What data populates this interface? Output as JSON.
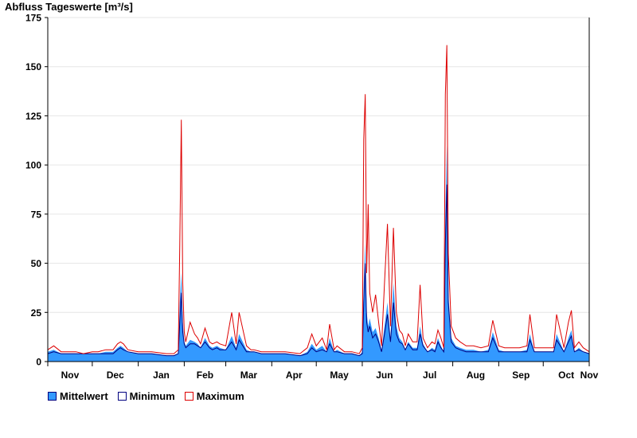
{
  "chart_data": {
    "type": "area",
    "title": "Abfluss Tageswerte [m³/s]",
    "xlabel": "",
    "ylabel": "",
    "ylim": [
      0,
      175
    ],
    "yticks": [
      "0",
      "25",
      "50",
      "75",
      "100",
      "125",
      "150",
      "175"
    ],
    "x_month_labels": [
      "Nov",
      "Dec",
      "Jan",
      "Feb",
      "Mar",
      "Apr",
      "May",
      "Jun",
      "Jul",
      "Aug",
      "Sep",
      "Oct",
      "Nov"
    ],
    "x": [
      "2020-11-01",
      "2020-11-05",
      "2020-11-10",
      "2020-11-15",
      "2020-11-20",
      "2020-11-25",
      "2020-12-01",
      "2020-12-05",
      "2020-12-10",
      "2020-12-15",
      "2020-12-18",
      "2020-12-20",
      "2020-12-22",
      "2020-12-25",
      "2021-01-01",
      "2021-01-10",
      "2021-01-20",
      "2021-01-25",
      "2021-01-28",
      "2021-01-29",
      "2021-01-30",
      "2021-01-31",
      "2021-02-01",
      "2021-02-02",
      "2021-02-05",
      "2021-02-08",
      "2021-02-10",
      "2021-02-12",
      "2021-02-15",
      "2021-02-18",
      "2021-02-20",
      "2021-02-23",
      "2021-02-25",
      "2021-03-01",
      "2021-03-05",
      "2021-03-08",
      "2021-03-10",
      "2021-03-15",
      "2021-03-18",
      "2021-03-20",
      "2021-03-25",
      "2021-04-01",
      "2021-04-10",
      "2021-04-20",
      "2021-04-25",
      "2021-04-28",
      "2021-05-01",
      "2021-05-05",
      "2021-05-08",
      "2021-05-10",
      "2021-05-13",
      "2021-05-15",
      "2021-05-20",
      "2021-05-25",
      "2021-05-30",
      "2021-06-01",
      "2021-06-02",
      "2021-06-03",
      "2021-06-04",
      "2021-06-05",
      "2021-06-06",
      "2021-06-08",
      "2021-06-10",
      "2021-06-12",
      "2021-06-14",
      "2021-06-16",
      "2021-06-18",
      "2021-06-20",
      "2021-06-22",
      "2021-06-24",
      "2021-06-26",
      "2021-06-28",
      "2021-06-30",
      "2021-07-02",
      "2021-07-05",
      "2021-07-08",
      "2021-07-10",
      "2021-07-12",
      "2021-07-15",
      "2021-07-18",
      "2021-07-20",
      "2021-07-22",
      "2021-07-24",
      "2021-07-26",
      "2021-07-27",
      "2021-07-28",
      "2021-07-29",
      "2021-07-31",
      "2021-08-03",
      "2021-08-06",
      "2021-08-10",
      "2021-08-15",
      "2021-08-20",
      "2021-08-25",
      "2021-08-28",
      "2021-09-01",
      "2021-09-05",
      "2021-09-10",
      "2021-09-15",
      "2021-09-20",
      "2021-09-22",
      "2021-09-25",
      "2021-10-01",
      "2021-10-05",
      "2021-10-08",
      "2021-10-10",
      "2021-10-15",
      "2021-10-18",
      "2021-10-20",
      "2021-10-22",
      "2021-10-25",
      "2021-10-28",
      "2021-11-01"
    ],
    "series": [
      {
        "name": "Mittelwert",
        "color": "#3399ff",
        "fill": true,
        "values": [
          5,
          6,
          4,
          4,
          4,
          4,
          4,
          4,
          5,
          5,
          7,
          8,
          7,
          5,
          4,
          4,
          3,
          3,
          4,
          30,
          45,
          20,
          10,
          8,
          11,
          10,
          9,
          7,
          12,
          8,
          7,
          8,
          7,
          6,
          13,
          7,
          14,
          6,
          5,
          5,
          4,
          4,
          4,
          3,
          5,
          9,
          6,
          8,
          5,
          12,
          5,
          6,
          4,
          4,
          3,
          5,
          40,
          60,
          25,
          18,
          22,
          15,
          17,
          12,
          6,
          18,
          30,
          12,
          40,
          18,
          12,
          10,
          6,
          10,
          7,
          7,
          18,
          9,
          5,
          7,
          6,
          12,
          8,
          5,
          75,
          110,
          35,
          12,
          8,
          7,
          6,
          6,
          5,
          6,
          15,
          6,
          5,
          5,
          5,
          6,
          14,
          5,
          5,
          5,
          5,
          14,
          5,
          12,
          16,
          5,
          7,
          5,
          4
        ]
      },
      {
        "name": "Minimum",
        "color": "#000080",
        "fill": false,
        "values": [
          4,
          5,
          4,
          4,
          4,
          4,
          4,
          4,
          4,
          4,
          6,
          7,
          6,
          5,
          4,
          4,
          3,
          3,
          4,
          20,
          35,
          15,
          9,
          7,
          9,
          9,
          8,
          7,
          10,
          7,
          6,
          7,
          6,
          6,
          10,
          6,
          11,
          5,
          5,
          5,
          4,
          4,
          4,
          3,
          4,
          7,
          5,
          6,
          5,
          9,
          5,
          5,
          4,
          4,
          3,
          4,
          30,
          50,
          20,
          15,
          18,
          12,
          14,
          10,
          5,
          14,
          24,
          10,
          30,
          14,
          10,
          9,
          6,
          9,
          6,
          6,
          14,
          8,
          5,
          6,
          5,
          10,
          7,
          5,
          60,
          90,
          30,
          10,
          7,
          6,
          5,
          5,
          5,
          5,
          12,
          5,
          5,
          5,
          5,
          5,
          11,
          5,
          5,
          5,
          5,
          11,
          5,
          10,
          13,
          5,
          6,
          5,
          4
        ]
      },
      {
        "name": "Maximum",
        "color": "#dd0000",
        "fill": false,
        "values": [
          6,
          8,
          5,
          5,
          5,
          4,
          5,
          5,
          6,
          6,
          9,
          10,
          9,
          6,
          5,
          5,
          4,
          4,
          6,
          60,
          123,
          40,
          15,
          10,
          20,
          14,
          12,
          9,
          17,
          10,
          9,
          10,
          9,
          8,
          25,
          9,
          25,
          8,
          6,
          6,
          5,
          5,
          5,
          4,
          7,
          14,
          8,
          12,
          6,
          19,
          6,
          8,
          5,
          5,
          4,
          7,
          113,
          136,
          45,
          80,
          35,
          25,
          34,
          20,
          8,
          40,
          70,
          18,
          68,
          25,
          16,
          14,
          8,
          14,
          10,
          10,
          39,
          12,
          7,
          10,
          9,
          16,
          12,
          7,
          136,
          161,
          55,
          18,
          12,
          10,
          8,
          8,
          7,
          8,
          21,
          8,
          7,
          7,
          7,
          8,
          24,
          7,
          7,
          7,
          7,
          24,
          7,
          20,
          26,
          7,
          10,
          7,
          5
        ]
      }
    ],
    "legend": "bottom-left",
    "grid": true
  }
}
